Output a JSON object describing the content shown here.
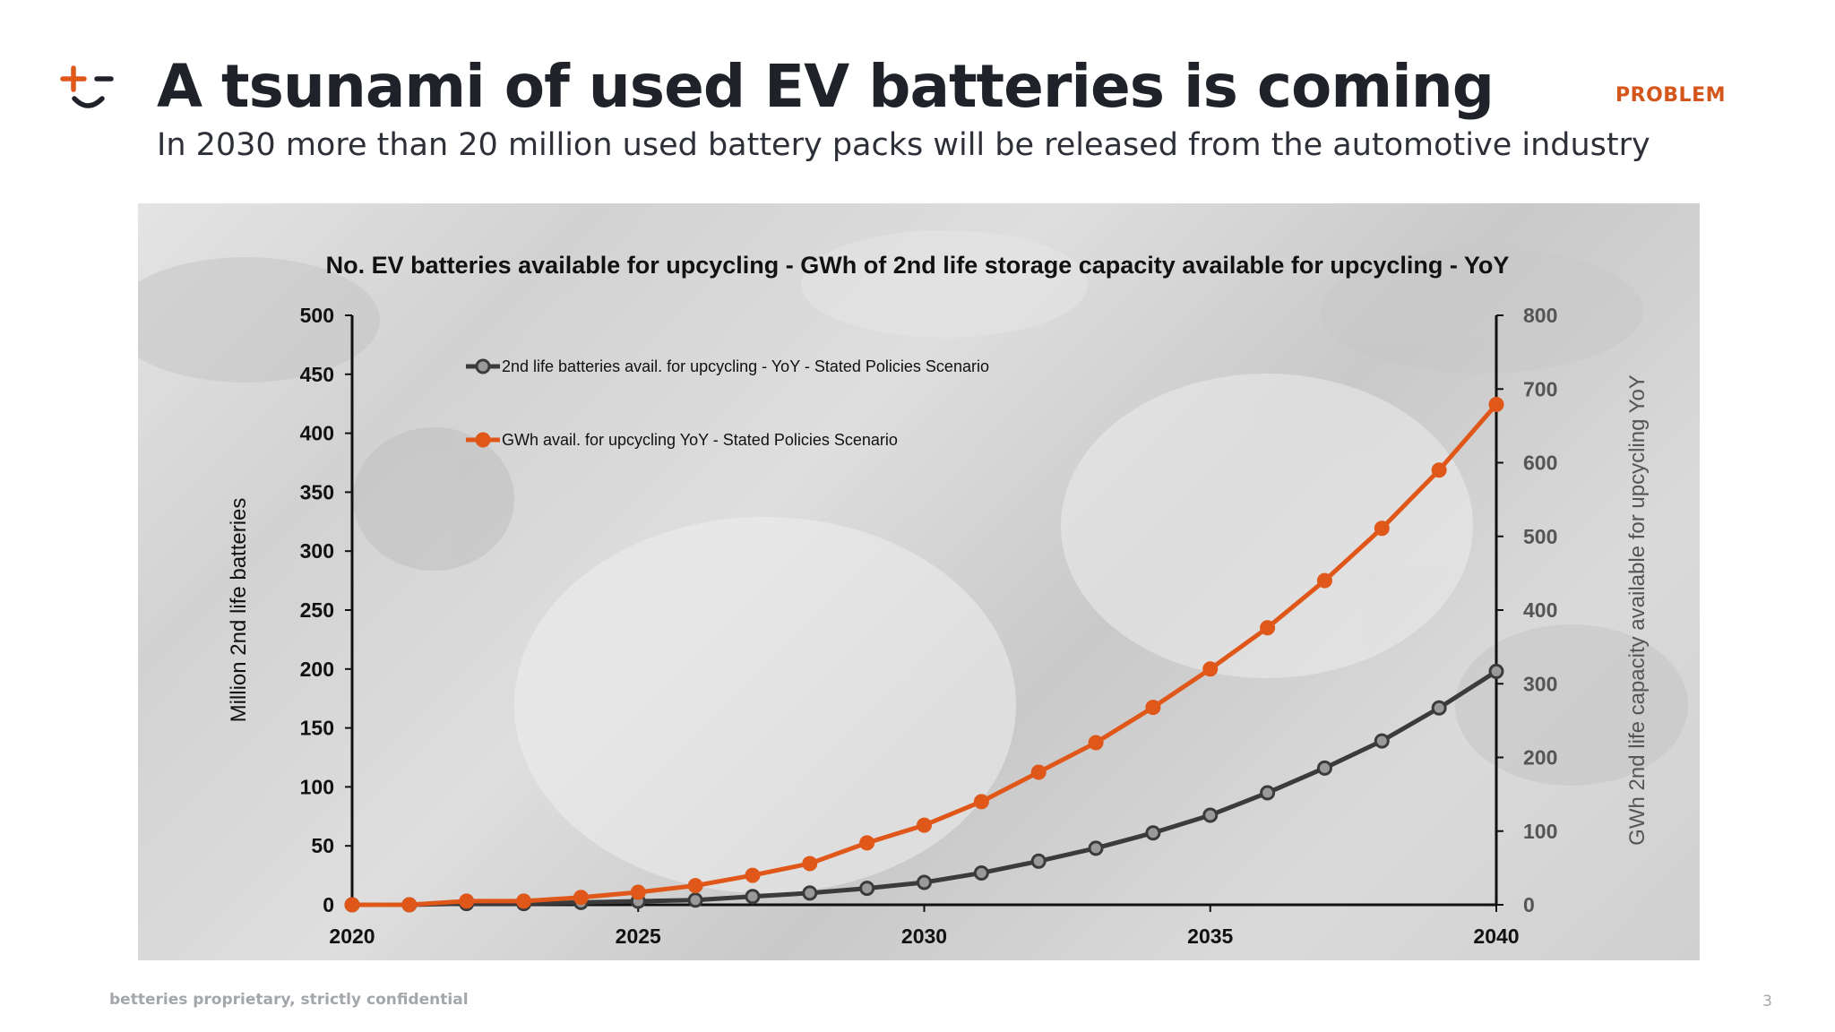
{
  "header": {
    "title": "A tsunami of used EV batteries is coming",
    "subtitle": "In 2030 more than 20 million used battery packs will be released from the automotive industry",
    "tag": "PROBLEM"
  },
  "footer": {
    "confidential": "betteries proprietary, strictly confidential",
    "page_number": "3"
  },
  "colors": {
    "accent": "#e0571a",
    "dark_series": "#3b3b3b",
    "text": "#1f2229"
  },
  "logo_icon": "betteries-smile-logo-icon",
  "chart_data": {
    "type": "line",
    "title": "No. EV batteries available for upcycling - GWh of 2nd life storage capacity available for upcycling - YoY",
    "ylabel_left": "Million 2nd life batteries",
    "ylabel_right": "GWh 2nd life capacity available for upcycling YoY",
    "x": [
      2020,
      2021,
      2022,
      2023,
      2024,
      2025,
      2026,
      2027,
      2028,
      2029,
      2030,
      2031,
      2032,
      2033,
      2034,
      2035,
      2036,
      2037,
      2038,
      2039,
      2040
    ],
    "x_ticks": [
      "2020",
      "2025",
      "2030",
      "2035",
      "2040"
    ],
    "ylim_left": [
      0,
      500
    ],
    "yticks_left": [
      "0",
      "50",
      "100",
      "150",
      "200",
      "250",
      "300",
      "350",
      "400",
      "450",
      "500"
    ],
    "ylim_right": [
      0,
      800
    ],
    "yticks_right": [
      "0",
      "100",
      "200",
      "300",
      "400",
      "500",
      "600",
      "700",
      "800"
    ],
    "grid": false,
    "legend_position": "top-left",
    "series": [
      {
        "name": "2nd life batteries avail. for upcycling - YoY - Stated Policies Scenario",
        "axis": "left",
        "color": "#3b3b3b",
        "values": [
          0,
          0,
          1,
          1,
          2,
          3,
          4,
          7,
          10,
          14,
          19,
          27,
          37,
          48,
          61,
          76,
          95,
          116,
          139,
          167,
          198
        ]
      },
      {
        "name": "GWh avail. for upcycling YoY - Stated Policies Scenario",
        "axis": "right",
        "color": "#e0571a",
        "values": [
          0,
          0,
          5,
          5,
          10,
          17,
          26,
          40,
          56,
          84,
          108,
          140,
          180,
          220,
          268,
          320,
          376,
          440,
          511,
          590,
          679
        ]
      }
    ]
  }
}
